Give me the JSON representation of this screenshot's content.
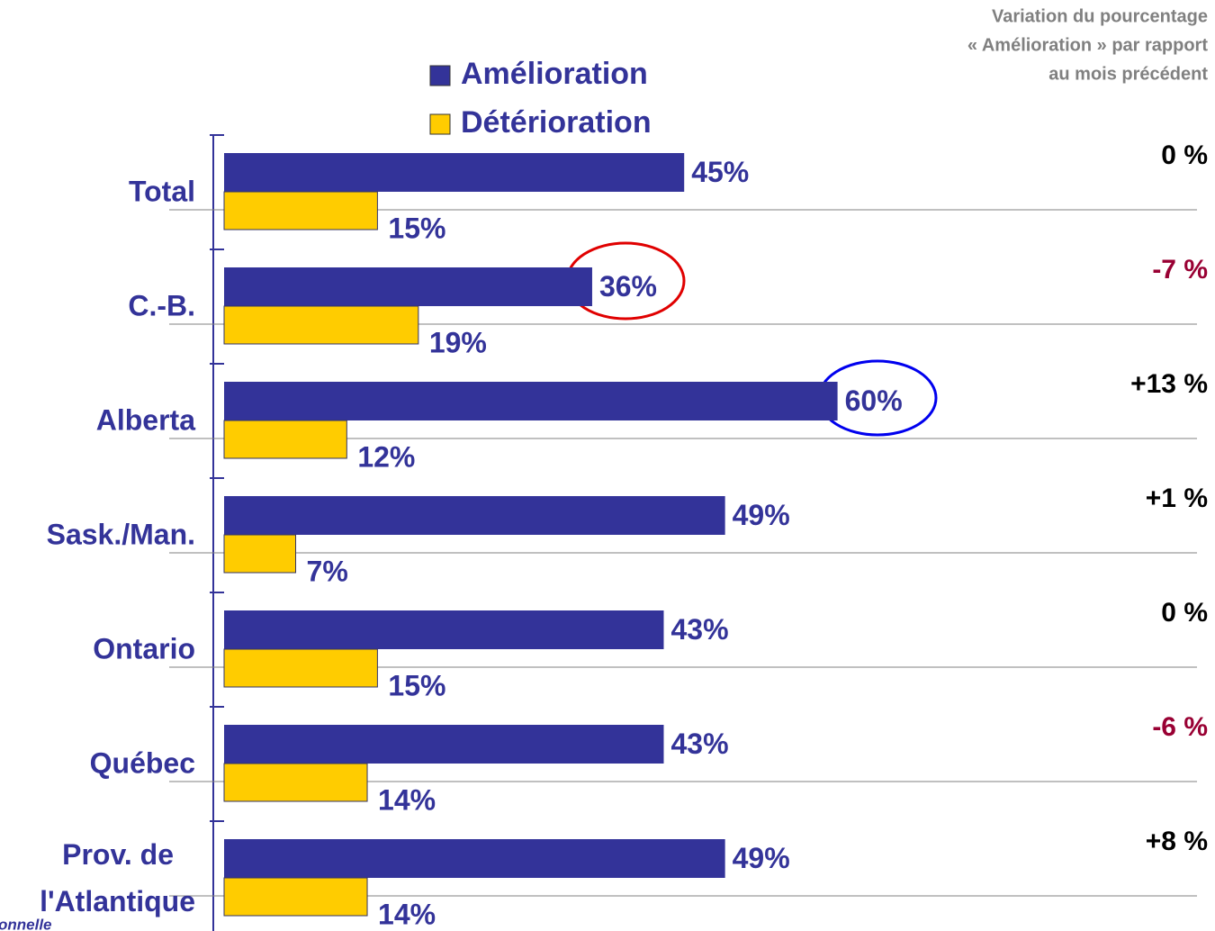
{
  "chart_data": {
    "type": "hbar",
    "categories": [
      "Total",
      "C.-B.",
      "Alberta",
      "Sask./Man.",
      "Ontario",
      "Québec",
      "Prov. de\nl'Atlantique"
    ],
    "series": [
      {
        "name": "Amélioration",
        "color": "#333399",
        "values": [
          45,
          36,
          60,
          49,
          43,
          43,
          49
        ],
        "value_labels": [
          "45%",
          "36%",
          "60%",
          "49%",
          "43%",
          "43%",
          "49%"
        ]
      },
      {
        "name": "Détérioration",
        "color": "#ffcc00",
        "values": [
          15,
          19,
          12,
          7,
          15,
          14,
          14
        ],
        "value_labels": [
          "15%",
          "19%",
          "12%",
          "7%",
          "15%",
          "14%",
          "14%"
        ]
      }
    ],
    "change_title": [
      "Variation du pourcentage",
      "« Amélioration » par rapport",
      "au mois précédent"
    ],
    "change_values": [
      0,
      -7,
      13,
      1,
      0,
      -6,
      8
    ],
    "change_labels": [
      "0 %",
      "-7 %",
      "+13 %",
      "+1 %",
      "0 %",
      "-6 %",
      "+8 %"
    ],
    "change_color": "#000000",
    "change_negative_color": "#990033",
    "footnote": "onnelle"
  }
}
